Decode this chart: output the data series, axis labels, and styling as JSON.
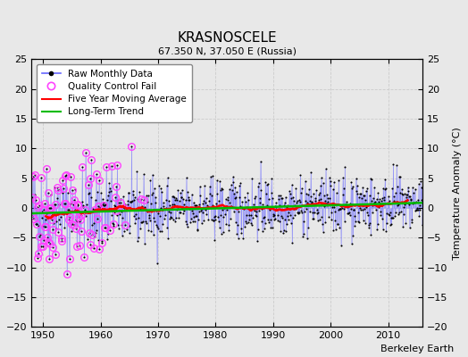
{
  "title": "KRASNOSCELE",
  "subtitle": "67.350 N, 37.050 E (Russia)",
  "ylabel_right": "Temperature Anomaly (°C)",
  "credit": "Berkeley Earth",
  "xlim": [
    1948,
    2016
  ],
  "ylim": [
    -20,
    25
  ],
  "yticks": [
    -20,
    -15,
    -10,
    -5,
    0,
    5,
    10,
    15,
    20,
    25
  ],
  "xticks": [
    1950,
    1960,
    1970,
    1980,
    1990,
    2000,
    2010
  ],
  "line_color": "#6666ff",
  "dot_color": "#000000",
  "qc_color": "#ff44ff",
  "moving_avg_color": "#ff0000",
  "trend_color": "#00bb00",
  "background_color": "#e8e8e8",
  "grid_color": "#cccccc",
  "seed": 42
}
